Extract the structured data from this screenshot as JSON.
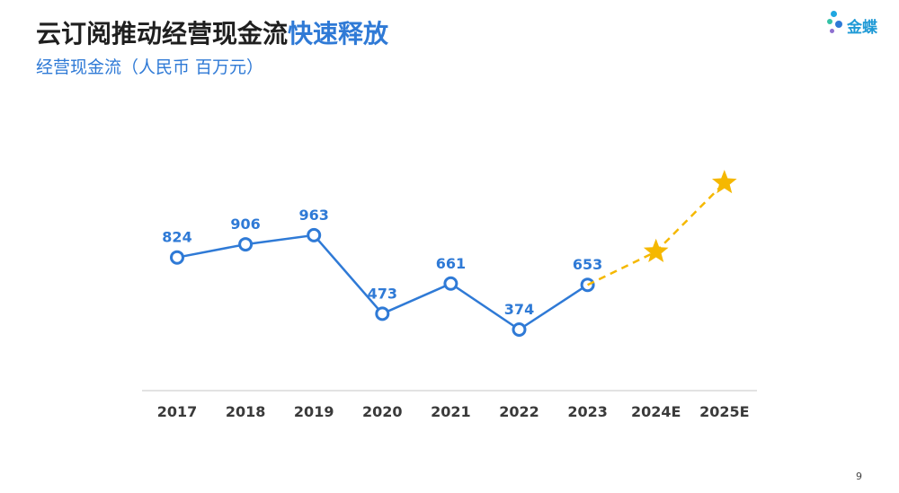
{
  "header": {
    "title_main": "云订阅推动经营现金流",
    "title_highlight": "快速释放",
    "subtitle": "经营现金流（人民币 百万元）"
  },
  "logo": {
    "text": "金蝶",
    "icon": "kingdee-dots-icon"
  },
  "page_number": "9",
  "colors": {
    "actual": "#2f7ad6",
    "forecast": "#f5b800",
    "axis": "#d0d0d0"
  },
  "chart_data": {
    "type": "line",
    "title": "",
    "xlabel": "",
    "ylabel": "经营现金流（人民币 百万元）",
    "categories": [
      "2017",
      "2018",
      "2019",
      "2020",
      "2021",
      "2022",
      "2023",
      "2024E",
      "2025E"
    ],
    "series": [
      {
        "kind": "actual",
        "x": [
          "2017",
          "2018",
          "2019",
          "2020",
          "2021",
          "2022",
          "2023"
        ],
        "values": [
          824,
          906,
          963,
          473,
          661,
          374,
          653
        ],
        "labels": [
          "824",
          "906",
          "963",
          "473",
          "661",
          "374",
          "653"
        ],
        "marker": "circle",
        "line": "solid"
      },
      {
        "kind": "forecast",
        "x": [
          "2023",
          "2024E",
          "2025E"
        ],
        "values": [
          653,
          860,
          1290
        ],
        "marker": "star",
        "line": "dashed"
      }
    ],
    "ylim": [
      0,
      1400
    ],
    "grid": false,
    "legend": "none"
  }
}
